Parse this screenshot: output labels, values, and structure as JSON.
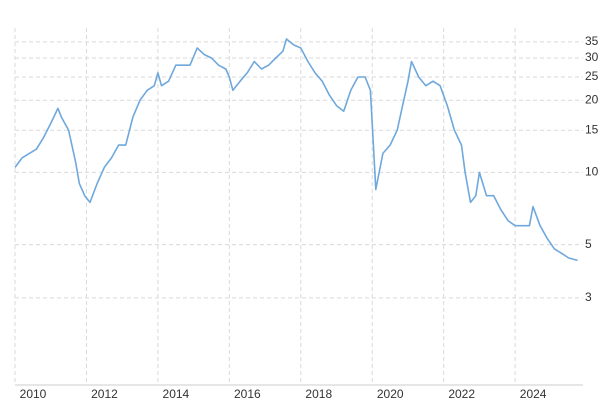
{
  "chart_data": {
    "type": "line",
    "x": [
      2010.0,
      2010.2,
      2010.4,
      2010.6,
      2010.8,
      2011.0,
      2011.2,
      2011.3,
      2011.5,
      2011.7,
      2011.8,
      2011.95,
      2012.1,
      2012.3,
      2012.5,
      2012.7,
      2012.9,
      2013.1,
      2013.3,
      2013.5,
      2013.7,
      2013.9,
      2014.0,
      2014.1,
      2014.3,
      2014.5,
      2014.7,
      2014.9,
      2015.1,
      2015.3,
      2015.5,
      2015.7,
      2015.9,
      2016.0,
      2016.1,
      2016.3,
      2016.5,
      2016.7,
      2016.9,
      2017.1,
      2017.3,
      2017.5,
      2017.6,
      2017.8,
      2018.0,
      2018.2,
      2018.4,
      2018.6,
      2018.8,
      2019.0,
      2019.2,
      2019.4,
      2019.6,
      2019.8,
      2019.95,
      2020.1,
      2020.3,
      2020.5,
      2020.7,
      2020.85,
      2021.0,
      2021.1,
      2021.3,
      2021.5,
      2021.7,
      2021.9,
      2022.1,
      2022.3,
      2022.5,
      2022.6,
      2022.75,
      2022.9,
      2023.0,
      2023.2,
      2023.4,
      2023.6,
      2023.8,
      2024.0,
      2024.2,
      2024.4,
      2024.5,
      2024.7,
      2024.9,
      2025.1,
      2025.3,
      2025.5,
      2025.75
    ],
    "series": [
      {
        "color": "#6fa8dc",
        "values": [
          10.5,
          11.5,
          12,
          12.5,
          14,
          16,
          18.5,
          17,
          15,
          11,
          9,
          8,
          7.5,
          9,
          10.5,
          11.5,
          13,
          13,
          17,
          20,
          22,
          23,
          26,
          23,
          24,
          28,
          28,
          28,
          33,
          31,
          30,
          28,
          27,
          25,
          22,
          24,
          26,
          29,
          27,
          28,
          30,
          32,
          36,
          34,
          33,
          29,
          26,
          24,
          21,
          19,
          18,
          22,
          25,
          25,
          22,
          8.5,
          12,
          13,
          15,
          19,
          24,
          29,
          25,
          23,
          24,
          23,
          19,
          15,
          13,
          10,
          7.5,
          8,
          10,
          8,
          8,
          7,
          6.3,
          6,
          6,
          6,
          7.2,
          6,
          5.3,
          4.8,
          4.6,
          4.4,
          4.3
        ]
      }
    ],
    "xlim": [
      2010,
      2025.9
    ],
    "xticks": [
      2010,
      2012,
      2014,
      2016,
      2018,
      2020,
      2022,
      2024
    ],
    "ylim": [
      1.3,
      40
    ],
    "yticks": [
      3,
      5,
      10,
      15,
      20,
      25,
      30,
      35
    ],
    "log_y": true,
    "grid": true
  }
}
